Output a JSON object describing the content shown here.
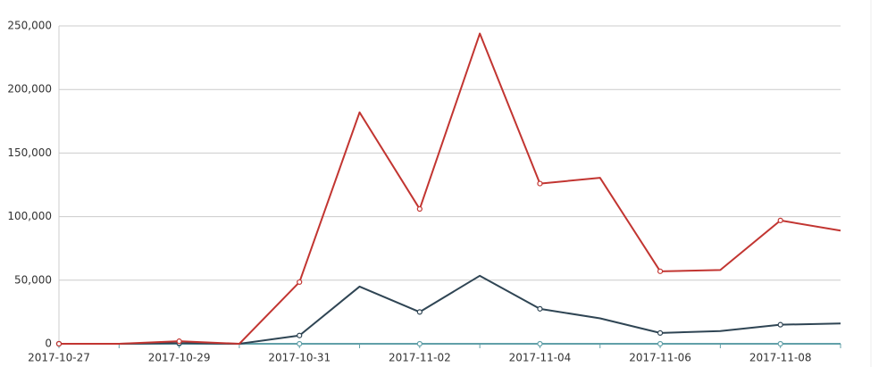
{
  "chart_data": {
    "type": "line",
    "categories": [
      "2017-10-27",
      null,
      "2017-10-29",
      null,
      "2017-10-31",
      null,
      "2017-11-02",
      null,
      "2017-11-04",
      null,
      "2017-11-06",
      null,
      "2017-11-08",
      null
    ],
    "series": [
      {
        "color": "#c23531",
        "values": [
          0,
          0,
          2000,
          0,
          48500,
          182000,
          106000,
          244000,
          126000,
          130500,
          57000,
          58000,
          97000,
          89000
        ]
      },
      {
        "color": "#2f4554",
        "values": [
          0,
          0,
          500,
          0,
          6500,
          45000,
          25000,
          53500,
          27500,
          20000,
          8500,
          10000,
          15000,
          16000
        ]
      },
      {
        "color": "#61a0a8",
        "values": [
          0,
          0,
          0,
          0,
          0,
          0,
          0,
          0,
          0,
          0,
          0,
          0,
          0,
          0
        ]
      }
    ],
    "ylim": [
      0,
      250000
    ],
    "yticks": [
      0,
      {
        "value": 50000,
        "label": "50,000"
      },
      {
        "value": 100000,
        "label": "100,000"
      },
      {
        "value": 150000,
        "label": "150,000"
      },
      {
        "value": 200000,
        "label": "200,000"
      },
      {
        "value": 250000,
        "label": "250,000"
      }
    ],
    "grid": true
  }
}
